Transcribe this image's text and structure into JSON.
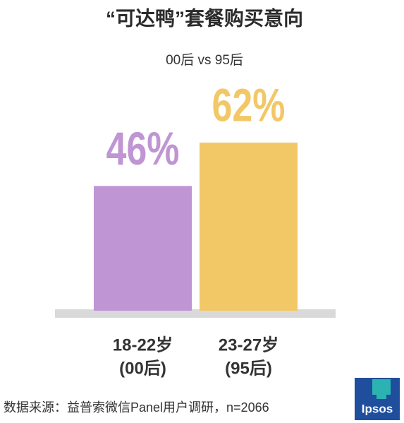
{
  "chart_data": {
    "type": "bar",
    "title": "“可达鸭”套餐购买意向",
    "subtitle": "00后 vs 95后",
    "categories": [
      [
        "18-22岁",
        "(00后)"
      ],
      [
        "23-27岁",
        "(95后)"
      ]
    ],
    "values": [
      46,
      62
    ],
    "value_labels": [
      "46%",
      "62%"
    ],
    "colors": [
      "#bf95d4",
      "#f2c867"
    ],
    "source": "数据来源：益普索微信Panel用户调研，n=2066",
    "logo": "Ipsos"
  }
}
